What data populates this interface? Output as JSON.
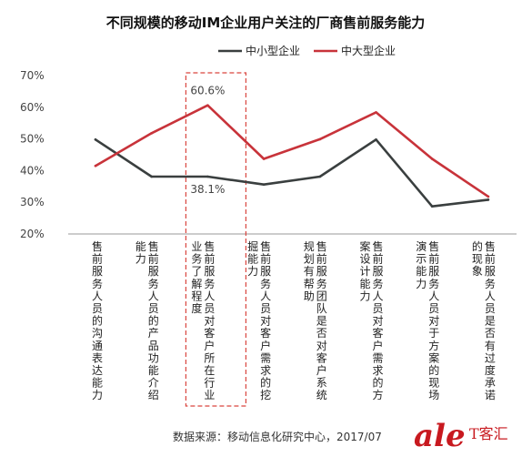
{
  "chart_data": {
    "type": "line",
    "title": "不同规模的移动IM企业用户关注的厂商售前服务能力",
    "categories": [
      "售前服务人员的沟通表达能力",
      "售前服务人员的产品功能介绍能力",
      "售前服务人员对客户所在行业业务了解程度",
      "售前服务人员对客户需求的挖掘能力",
      "售前服务团队是否对客户系统规划有帮助",
      "售前服务人员对客户需求的方案设计能力",
      "售前服务人员对于方案的现场演示能力",
      "售前服务人员是否有过度承诺的现象"
    ],
    "series": [
      {
        "name": "中小型企业",
        "color": "#3a3f3f",
        "values": [
          49.8,
          38.1,
          38.1,
          35.6,
          38.1,
          49.8,
          28.7,
          30.8
        ]
      },
      {
        "name": "中大型企业",
        "color": "#c8333a",
        "values": [
          41.5,
          51.8,
          60.6,
          43.7,
          49.9,
          58.4,
          43.7,
          31.8
        ]
      }
    ],
    "ylim": [
      20,
      70
    ],
    "yticks": [
      "20%",
      "30%",
      "40%",
      "50%",
      "60%",
      "70%"
    ],
    "ytick_values": [
      20,
      30,
      40,
      50,
      60,
      70
    ],
    "grid": false,
    "legend_position": "top-center",
    "highlight_category_index": 2,
    "annotations": [
      {
        "series_index": 1,
        "category_index": 2,
        "text": "60.6%"
      },
      {
        "series_index": 0,
        "category_index": 2,
        "text": "38.1%"
      }
    ],
    "source": "数据来源：移动信息化研究中心，2017/07",
    "watermark": "T客汇"
  }
}
